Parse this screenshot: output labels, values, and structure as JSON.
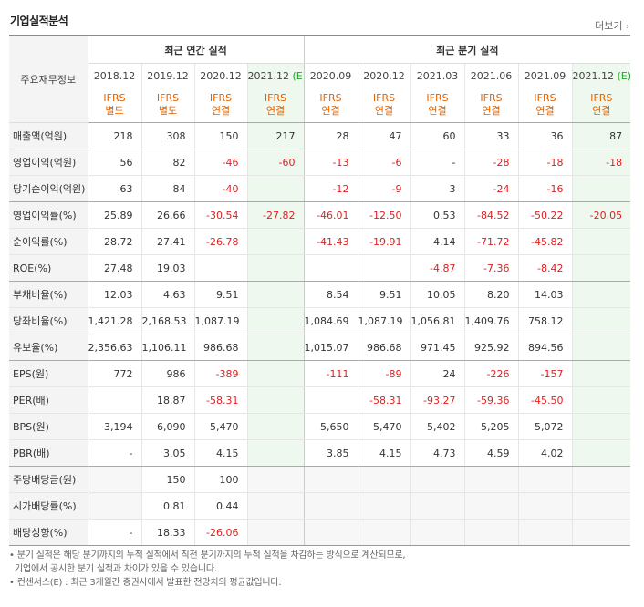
{
  "title": "기업실적분석",
  "more_label": "더보기",
  "header": {
    "corner": "주요재무정보",
    "annual_group": "최근 연간 실적",
    "quarter_group": "최근 분기 실적"
  },
  "periods": [
    {
      "label": "2018.12",
      "est": "",
      "ifrs": "IFRS",
      "basis": "별도"
    },
    {
      "label": "2019.12",
      "est": "",
      "ifrs": "IFRS",
      "basis": "별도"
    },
    {
      "label": "2020.12",
      "est": "",
      "ifrs": "IFRS",
      "basis": "연결"
    },
    {
      "label": "2021.12",
      "est": "(E)",
      "ifrs": "IFRS",
      "basis": "연결"
    },
    {
      "label": "2020.09",
      "est": "",
      "ifrs": "IFRS",
      "basis": "연결"
    },
    {
      "label": "2020.12",
      "est": "",
      "ifrs": "IFRS",
      "basis": "연결"
    },
    {
      "label": "2021.03",
      "est": "",
      "ifrs": "IFRS",
      "basis": "연결"
    },
    {
      "label": "2021.06",
      "est": "",
      "ifrs": "IFRS",
      "basis": "연결"
    },
    {
      "label": "2021.09",
      "est": "",
      "ifrs": "IFRS",
      "basis": "연결"
    },
    {
      "label": "2021.12",
      "est": "(E)",
      "ifrs": "IFRS",
      "basis": "연결"
    }
  ],
  "rows": [
    {
      "label": "매출액(억원)",
      "values": [
        "218",
        "308",
        "150",
        "217",
        "28",
        "47",
        "60",
        "33",
        "36",
        "87"
      ]
    },
    {
      "label": "영업이익(억원)",
      "values": [
        "56",
        "82",
        "-46",
        "-60",
        "-13",
        "-6",
        "-",
        "-28",
        "-18",
        "-18"
      ]
    },
    {
      "label": "당기순이익(억원)",
      "values": [
        "63",
        "84",
        "-40",
        "",
        "-12",
        "-9",
        "3",
        "-24",
        "-16",
        ""
      ]
    },
    {
      "label": "영업이익률(%)",
      "values": [
        "25.89",
        "26.66",
        "-30.54",
        "-27.82",
        "-46.01",
        "-12.50",
        "0.53",
        "-84.52",
        "-50.22",
        "-20.05"
      ]
    },
    {
      "label": "순이익률(%)",
      "values": [
        "28.72",
        "27.41",
        "-26.78",
        "",
        "-41.43",
        "-19.91",
        "4.14",
        "-71.72",
        "-45.82",
        ""
      ]
    },
    {
      "label": "ROE(%)",
      "values": [
        "27.48",
        "19.03",
        "",
        "",
        "",
        "",
        "-4.87",
        "-7.36",
        "-8.42",
        ""
      ]
    },
    {
      "label": "부채비율(%)",
      "values": [
        "12.03",
        "4.63",
        "9.51",
        "",
        "8.54",
        "9.51",
        "10.05",
        "8.20",
        "14.03",
        ""
      ]
    },
    {
      "label": "당좌비율(%)",
      "values": [
        "1,421.28",
        "2,168.53",
        "1,087.19",
        "",
        "1,084.69",
        "1,087.19",
        "1,056.81",
        "1,409.76",
        "758.12",
        ""
      ]
    },
    {
      "label": "유보율(%)",
      "values": [
        "2,356.63",
        "1,106.11",
        "986.68",
        "",
        "1,015.07",
        "986.68",
        "971.45",
        "925.92",
        "894.56",
        ""
      ]
    },
    {
      "label": "EPS(원)",
      "values": [
        "772",
        "986",
        "-389",
        "",
        "-111",
        "-89",
        "24",
        "-226",
        "-157",
        ""
      ]
    },
    {
      "label": "PER(배)",
      "values": [
        "",
        "18.87",
        "-58.31",
        "",
        "",
        "-58.31",
        "-93.27",
        "-59.36",
        "-45.50",
        ""
      ]
    },
    {
      "label": "BPS(원)",
      "values": [
        "3,194",
        "6,090",
        "5,470",
        "",
        "5,650",
        "5,470",
        "5,402",
        "5,205",
        "5,072",
        ""
      ]
    },
    {
      "label": "PBR(배)",
      "values": [
        "-",
        "3.05",
        "4.15",
        "",
        "3.85",
        "4.15",
        "4.73",
        "4.59",
        "4.02",
        ""
      ]
    },
    {
      "label": "주당배당금(원)",
      "values": [
        "",
        "150",
        "100",
        "",
        "",
        "",
        "",
        "",
        "",
        ""
      ]
    },
    {
      "label": "시가배당률(%)",
      "values": [
        "",
        "0.81",
        "0.44",
        "",
        "",
        "",
        "",
        "",
        "",
        ""
      ]
    },
    {
      "label": "배당성향(%)",
      "values": [
        "-",
        "18.33",
        "-26.06",
        "",
        "",
        "",
        "",
        "",
        "",
        ""
      ]
    }
  ],
  "notes": [
    "분기 실적은 해당 분기까지의 누적 실적에서 직전 분기까지의 누적 실적을 차감하는 방식으로 계산되므로,",
    "기업에서 공시한 분기 실적과 차이가 있을 수 있습니다.",
    "컨센서스(E) : 최근 3개월간 증권사에서 발표한 전망치의 평균값입니다."
  ],
  "colors": {
    "negative": "#e02020",
    "ifrs": "#e36200",
    "estimate_bg": "#eef8ee",
    "label_bg": "#f4f4f4"
  }
}
